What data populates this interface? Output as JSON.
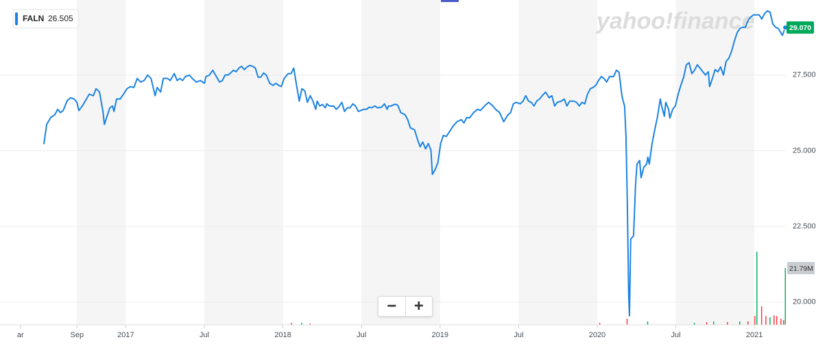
{
  "chart_data": {
    "type": "line",
    "watermark": "yahoo!finance",
    "legend_value": 26.505,
    "last_price": {
      "value": 29.07,
      "label": "29.070"
    },
    "x": [
      2016.479,
      2016.497,
      2016.523,
      2016.549,
      2016.567,
      2016.584,
      2016.602,
      2016.628,
      2016.65,
      2016.672,
      2016.689,
      2016.702,
      2016.724,
      2016.75,
      2016.768,
      2016.794,
      2016.811,
      2016.833,
      2016.855,
      2016.864,
      2016.881,
      2016.899,
      2016.916,
      2016.925,
      2016.942,
      2016.964,
      2016.986,
      2017.008,
      2017.03,
      2017.052,
      2017.073,
      2017.095,
      2017.117,
      2017.139,
      2017.161,
      2017.187,
      2017.2,
      2017.222,
      2017.239,
      2017.266,
      2017.283,
      2017.309,
      2017.327,
      2017.344,
      2017.362,
      2017.379,
      2017.405,
      2017.423,
      2017.449,
      2017.475,
      2017.501,
      2017.51,
      2017.532,
      2017.554,
      2017.571,
      2017.597,
      2017.615,
      2017.632,
      2017.65,
      2017.667,
      2017.685,
      2017.702,
      2017.72,
      2017.737,
      2017.755,
      2017.772,
      2017.79,
      2017.807,
      2017.825,
      2017.842,
      2017.859,
      2017.877,
      2017.894,
      2017.916,
      2017.938,
      2017.956,
      2017.973,
      2017.99,
      2018.008,
      2018.034,
      2018.052,
      2018.069,
      2018.087,
      2018.104,
      2018.121,
      2018.139,
      2018.156,
      2018.174,
      2018.191,
      2018.209,
      2018.218,
      2018.235,
      2018.252,
      2018.27,
      2018.279,
      2018.296,
      2018.322,
      2018.34,
      2018.357,
      2018.375,
      2018.392,
      2018.41,
      2018.427,
      2018.445,
      2018.462,
      2018.48,
      2018.515,
      2018.532,
      2018.549,
      2018.567,
      2018.584,
      2018.602,
      2018.628,
      2018.646,
      2018.663,
      2018.672,
      2018.689,
      2018.707,
      2018.724,
      2018.733,
      2018.75,
      2018.777,
      2018.794,
      2018.811,
      2018.838,
      2018.855,
      2018.873,
      2018.89,
      2018.908,
      2018.925,
      2018.942,
      2018.951,
      2018.969,
      2018.986,
      2019.004,
      2019.021,
      2019.039,
      2019.06,
      2019.082,
      2019.108,
      2019.135,
      2019.152,
      2019.17,
      2019.187,
      2019.213,
      2019.239,
      2019.257,
      2019.283,
      2019.309,
      2019.336,
      2019.353,
      2019.379,
      2019.405,
      2019.432,
      2019.449,
      2019.466,
      2019.484,
      2019.51,
      2019.528,
      2019.545,
      2019.563,
      2019.58,
      2019.598,
      2019.615,
      2019.633,
      2019.65,
      2019.672,
      2019.694,
      2019.711,
      2019.729,
      2019.746,
      2019.772,
      2019.79,
      2019.807,
      2019.825,
      2019.851,
      2019.868,
      2019.886,
      2019.903,
      2019.921,
      2019.938,
      2019.956,
      2019.973,
      2019.991,
      2020.008,
      2020.026,
      2020.043,
      2020.06,
      2020.078,
      2020.104,
      2020.122,
      2020.139,
      2020.157,
      2020.165,
      2020.174,
      2020.183,
      2020.191,
      2020.2,
      2020.205,
      2020.213,
      2020.231,
      2020.244,
      2020.253,
      2020.27,
      2020.279,
      2020.296,
      2020.314,
      2020.322,
      2020.331,
      2020.349,
      2020.366,
      2020.384,
      2020.401,
      2020.41,
      2020.427,
      2020.436,
      2020.454,
      2020.462,
      2020.48,
      2020.497,
      2020.515,
      2020.532,
      2020.55,
      2020.567,
      2020.584,
      2020.602,
      2020.619,
      2020.637,
      2020.654,
      2020.672,
      2020.689,
      2020.707,
      2020.715,
      2020.733,
      2020.75,
      2020.768,
      2020.785,
      2020.803,
      2020.82,
      2020.838,
      2020.855,
      2020.873,
      2020.89,
      2020.908,
      2020.925,
      2020.943,
      2020.96,
      2020.977,
      2020.995,
      2021.012,
      2021.03,
      2021.047,
      2021.065,
      2021.082,
      2021.1,
      2021.117,
      2021.135,
      2021.152,
      2021.178,
      2021.196
    ],
    "series": [
      {
        "name": "FALN",
        "color": "#1a82e2",
        "values": [
          25.22,
          25.87,
          26.1,
          26.19,
          26.37,
          26.26,
          26.33,
          26.66,
          26.75,
          26.71,
          26.6,
          26.33,
          26.48,
          26.71,
          26.87,
          26.82,
          27.05,
          26.94,
          26.3,
          25.87,
          26.14,
          26.42,
          26.48,
          26.3,
          26.71,
          26.71,
          26.87,
          27.05,
          27.12,
          27.09,
          27.39,
          27.27,
          27.32,
          27.5,
          27.39,
          26.82,
          27.09,
          26.94,
          27.39,
          27.39,
          27.32,
          27.55,
          27.32,
          27.39,
          27.32,
          27.45,
          27.5,
          27.39,
          27.27,
          27.32,
          27.23,
          27.45,
          27.5,
          27.66,
          27.5,
          27.27,
          27.32,
          27.5,
          27.5,
          27.57,
          27.66,
          27.61,
          27.73,
          27.79,
          27.68,
          27.77,
          27.82,
          27.79,
          27.73,
          27.43,
          27.43,
          27.57,
          27.5,
          27.23,
          27.16,
          27.23,
          27.16,
          27.12,
          27.39,
          27.55,
          27.55,
          27.73,
          27.16,
          26.64,
          27.05,
          26.98,
          26.6,
          26.82,
          26.64,
          26.37,
          26.64,
          26.48,
          26.53,
          26.42,
          26.55,
          26.48,
          26.48,
          26.37,
          26.46,
          26.6,
          26.3,
          26.42,
          26.42,
          26.55,
          26.48,
          26.3,
          26.37,
          26.37,
          26.44,
          26.42,
          26.48,
          26.42,
          26.44,
          26.55,
          26.37,
          26.48,
          26.48,
          26.53,
          26.53,
          26.48,
          26.26,
          26.19,
          26.03,
          25.76,
          25.69,
          25.4,
          25.13,
          25.29,
          25.06,
          25.24,
          25.02,
          24.22,
          24.38,
          24.61,
          25.24,
          25.51,
          25.47,
          25.63,
          25.81,
          25.96,
          26.03,
          25.92,
          26.1,
          26.08,
          26.26,
          26.37,
          26.33,
          26.48,
          26.6,
          26.48,
          26.37,
          26.26,
          25.96,
          26.19,
          26.26,
          26.55,
          26.6,
          26.55,
          26.64,
          26.82,
          26.64,
          26.6,
          26.48,
          26.64,
          26.71,
          26.82,
          26.94,
          26.75,
          26.82,
          26.48,
          26.6,
          26.64,
          26.71,
          26.48,
          26.64,
          26.64,
          26.6,
          26.48,
          26.6,
          26.55,
          26.87,
          27.05,
          27.09,
          27.16,
          27.32,
          27.45,
          27.39,
          27.27,
          27.45,
          27.45,
          27.66,
          27.59,
          26.82,
          26.64,
          26.48,
          25.47,
          23.43,
          20.27,
          19.55,
          22.08,
          22.19,
          23.89,
          24.56,
          24.68,
          24.11,
          24.45,
          24.56,
          24.79,
          24.56,
          25.24,
          25.69,
          26.14,
          26.71,
          26.48,
          26.14,
          26.6,
          26.37,
          26.08,
          26.37,
          26.48,
          26.87,
          27.16,
          27.43,
          27.84,
          27.91,
          27.55,
          27.66,
          27.84,
          27.73,
          27.61,
          27.5,
          27.61,
          27.12,
          27.39,
          27.68,
          27.61,
          27.77,
          27.5,
          27.95,
          28.06,
          28.29,
          28.63,
          28.9,
          29.04,
          29.08,
          29.08,
          29.31,
          29.42,
          29.49,
          29.49,
          29.49,
          29.35,
          29.53,
          29.62,
          29.58,
          29.19,
          29.08,
          29.04,
          28.81,
          29.07
        ]
      }
    ],
    "xlim": [
      2016.2,
      2021.2
    ],
    "xticks": [
      {
        "value": 2016.33,
        "label": "ar"
      },
      {
        "value": 2016.69,
        "label": "Sep"
      },
      2017,
      {
        "value": 2017.5,
        "label": "Jul"
      },
      2018,
      {
        "value": 2018.5,
        "label": "Jul"
      },
      2019,
      {
        "value": 2019.5,
        "label": "Jul"
      },
      2020,
      {
        "value": 2020.5,
        "label": "Jul"
      },
      2021
    ],
    "ylim": [
      19.25,
      29.98
    ],
    "yticks": [
      {
        "value": 20,
        "label": "20.000"
      },
      {
        "value": 22.5,
        "label": "22.500"
      },
      {
        "value": 25,
        "label": "25.000"
      },
      {
        "value": 27.5,
        "label": "27.500"
      }
    ],
    "grid": true,
    "volume": {
      "x": [
        2018.056,
        2018.121,
        2018.174,
        2020.017,
        2020.191,
        2020.322,
        2020.619,
        2020.698,
        2020.742,
        2020.829,
        2020.908,
        2020.96,
        2021.004,
        2021.017,
        2021.047,
        2021.074,
        2021.1,
        2021.126,
        2021.143,
        2021.17,
        2021.187,
        2021.198
      ],
      "values": [
        0.79,
        0.79,
        0.52,
        0.79,
        2.36,
        1.31,
        0.79,
        1.05,
        1.31,
        1.05,
        1.31,
        1.31,
        3.41,
        28.08,
        7.09,
        3.41,
        2.89,
        3.67,
        3.41,
        2.36,
        1.84,
        21.79
      ],
      "value_labels": [
        null,
        null,
        null,
        null,
        null,
        null,
        null,
        null,
        null,
        null,
        null,
        null,
        null,
        null,
        null,
        null,
        null,
        null,
        null,
        null,
        null,
        "21.79M"
      ],
      "colors": [
        "#ff333a",
        "#00b061",
        "#ff333a",
        "#ff333a",
        "#ff333a",
        "#00b061",
        "#00b061",
        "#ff333a",
        "#00b061",
        "#ff333a",
        "#00b061",
        "#ff333a",
        "#ff333a",
        "#00b061",
        "#ff333a",
        "#ff333a",
        "#00b061",
        "#ff333a",
        "#ff333a",
        "#ff333a",
        "#ff333a",
        "#00b061"
      ],
      "ylim": [
        0,
        124.7
      ]
    }
  },
  "controls": {
    "zoom_out": "−",
    "zoom_in": "+"
  }
}
